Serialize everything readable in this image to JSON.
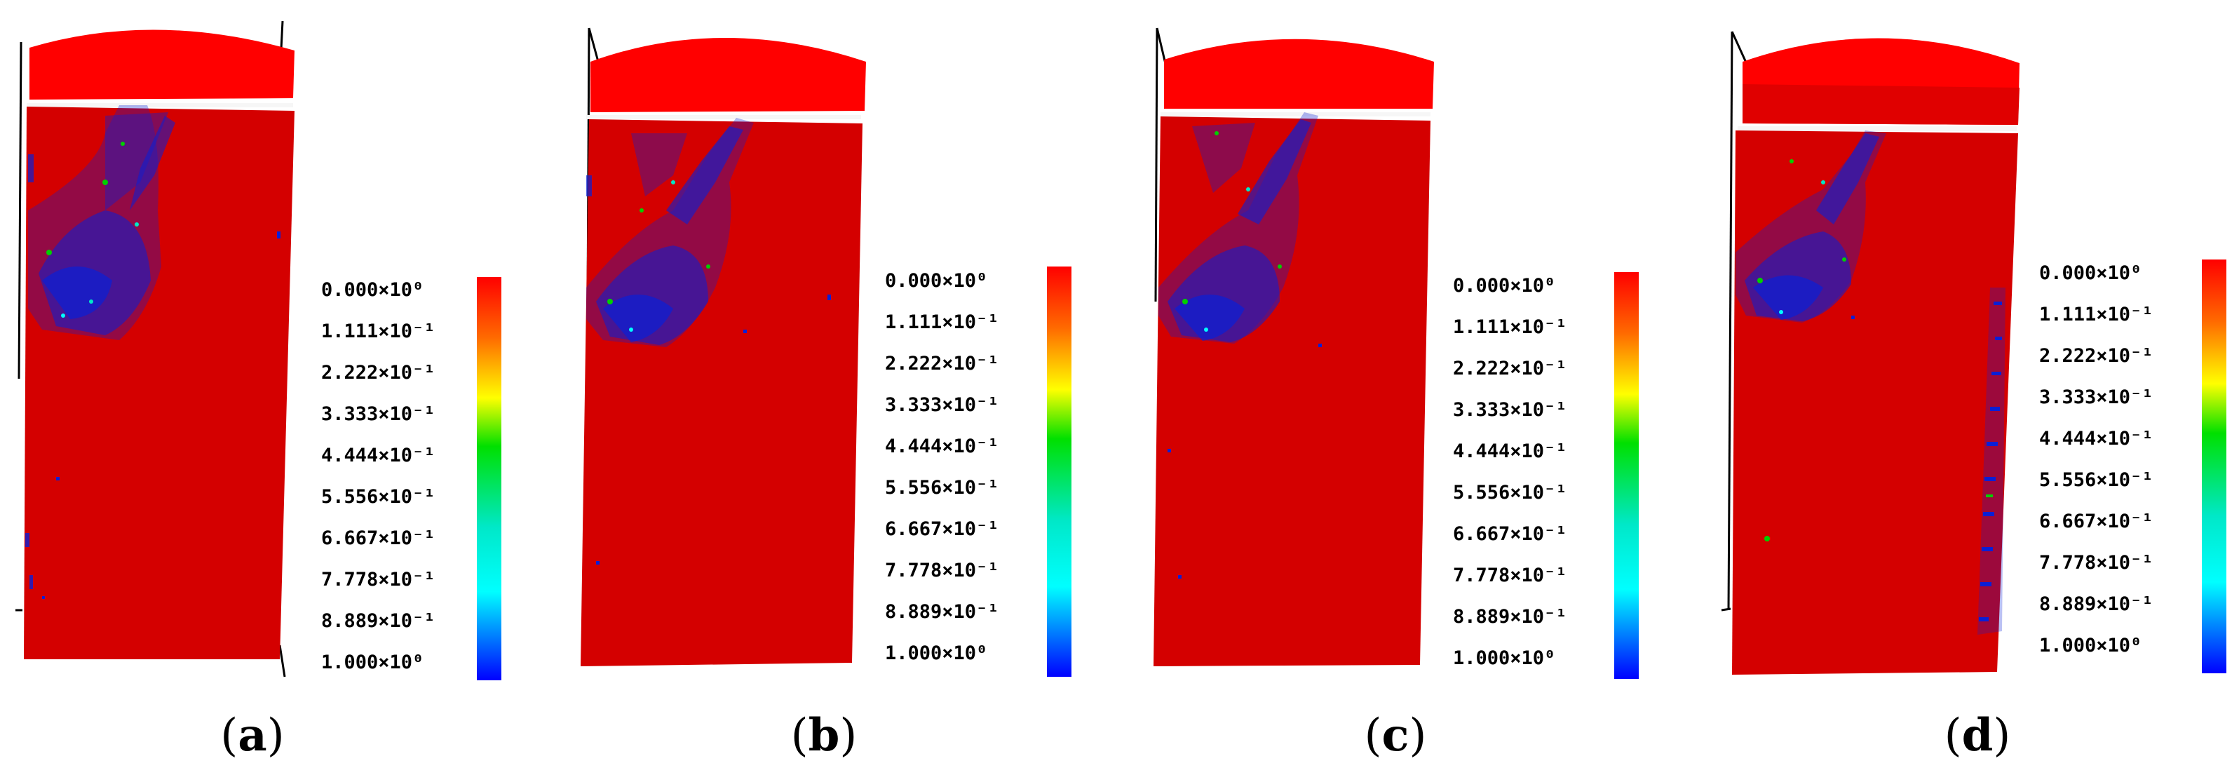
{
  "panels": [
    {
      "id": "a",
      "caption_open": "(",
      "caption_letter": "a",
      "caption_close": ")",
      "colorbar_labels": [
        "0.000×10⁰",
        "1.111×10⁻¹",
        "2.222×10⁻¹",
        "3.333×10⁻¹",
        "4.444×10⁻¹",
        "5.556×10⁻¹",
        "6.667×10⁻¹",
        "7.778×10⁻¹",
        "8.889×10⁻¹",
        "1.000×10⁰"
      ]
    },
    {
      "id": "b",
      "caption_open": "(",
      "caption_letter": "b",
      "caption_close": ")",
      "colorbar_labels": [
        "0.000×10⁰",
        "1.111×10⁻¹",
        "2.222×10⁻¹",
        "3.333×10⁻¹",
        "4.444×10⁻¹",
        "5.556×10⁻¹",
        "6.667×10⁻¹",
        "7.778×10⁻¹",
        "8.889×10⁻¹",
        "1.000×10⁰"
      ]
    },
    {
      "id": "c",
      "caption_open": "(",
      "caption_letter": "c",
      "caption_close": ")",
      "colorbar_labels": [
        "0.000×10⁰",
        "1.111×10⁻¹",
        "2.222×10⁻¹",
        "3.333×10⁻¹",
        "4.444×10⁻¹",
        "5.556×10⁻¹",
        "6.667×10⁻¹",
        "7.778×10⁻¹",
        "8.889×10⁻¹",
        "1.000×10⁰"
      ]
    },
    {
      "id": "d",
      "caption_open": "(",
      "caption_letter": "d",
      "caption_close": ")",
      "colorbar_labels": [
        "0.000×10⁰",
        "1.111×10⁻¹",
        "2.222×10⁻¹",
        "3.333×10⁻¹",
        "4.444×10⁻¹",
        "5.556×10⁻¹",
        "6.667×10⁻¹",
        "7.778×10⁻¹",
        "8.889×10⁻¹",
        "1.000×10⁰"
      ]
    }
  ],
  "colors": {
    "specimen_red": "#d40000",
    "platen_red": "#ff0000",
    "damage_blue": "#0a1fd6",
    "colorbar_stops": [
      "#ff0000",
      "#ff8000",
      "#ffff00",
      "#00e000",
      "#00ffff",
      "#0000ff"
    ]
  }
}
